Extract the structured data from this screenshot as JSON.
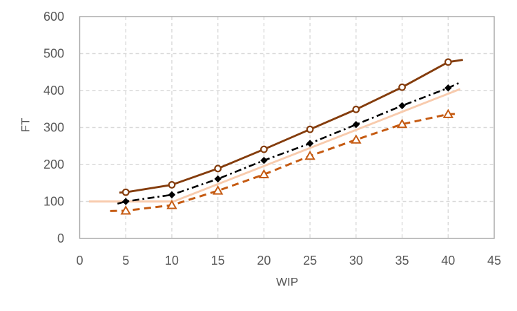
{
  "figure": {
    "background": "#FFFFFF",
    "text_color": "#595959",
    "grid_color": "#D9D9D9",
    "border_color": "#A6A6A6"
  },
  "chart_data": {
    "type": "line",
    "title": "",
    "xlabel": "WIP",
    "ylabel": "FT",
    "xlim": [
      0,
      45
    ],
    "ylim": [
      0,
      600
    ],
    "xticks": [
      0,
      5,
      10,
      15,
      20,
      25,
      30,
      35,
      40,
      45
    ],
    "yticks": [
      0,
      100,
      200,
      300,
      400,
      500,
      600
    ],
    "grid": true,
    "legend": "none",
    "series": [
      {
        "name": "peach-solid-line",
        "color": "#F8CBAD",
        "dash": "solid",
        "marker": "none",
        "line_x": [
          1,
          10.2,
          41.3
        ],
        "line_y": [
          100,
          100,
          404
        ]
      },
      {
        "name": "brown-dashed-triangle-series",
        "color": "#C55A11",
        "dash": "dashed",
        "marker": "triangle-open",
        "line_x": [
          3.3,
          5,
          10,
          15,
          20,
          25,
          30,
          35,
          40,
          41.2
        ],
        "line_y": [
          74,
          75,
          90,
          129,
          173,
          223,
          267,
          309,
          336,
          337
        ],
        "marker_x": [
          5,
          10,
          15,
          20,
          25,
          30,
          35,
          40
        ],
        "marker_y": [
          75,
          90,
          129,
          173,
          223,
          267,
          309,
          336
        ]
      },
      {
        "name": "dark-brown-solid-circle-series",
        "color": "#843C0C",
        "dash": "solid",
        "marker": "circle-open",
        "line_x": [
          4.3,
          5,
          10,
          15,
          20,
          25,
          30,
          35,
          40,
          41.6
        ],
        "line_y": [
          124,
          125,
          145,
          189,
          241,
          295,
          349,
          409,
          477,
          483
        ],
        "marker_x": [
          5,
          10,
          15,
          20,
          25,
          30,
          35,
          40
        ],
        "marker_y": [
          125,
          145,
          189,
          241,
          295,
          349,
          409,
          477
        ]
      },
      {
        "name": "black-dashdot-diamond-series",
        "color": "#000000",
        "dash": "dash-dot",
        "marker": "diamond-filled",
        "line_x": [
          4.1,
          5,
          10,
          15,
          20,
          25,
          30,
          35,
          40,
          41.3
        ],
        "line_y": [
          94,
          100,
          118,
          161,
          211,
          257,
          308,
          359,
          407,
          422
        ],
        "marker_x": [
          5,
          10,
          15,
          20,
          25,
          30,
          35,
          40
        ],
        "marker_y": [
          100,
          118,
          161,
          211,
          257,
          308,
          359,
          407
        ]
      }
    ]
  }
}
